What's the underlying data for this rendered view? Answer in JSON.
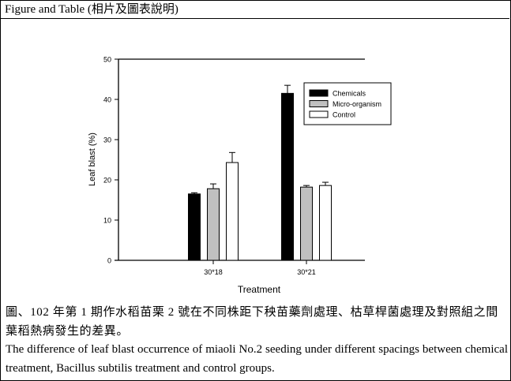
{
  "header": {
    "title": "Figure and Table (相片及圖表說明)"
  },
  "caption": {
    "zh": "圖、102 年第 1 期作水稻苗栗 2 號在不同株距下秧苗藥劑處理、枯草桿菌處理及對照組之間葉稻熱病發生的差異。",
    "en": "The difference of leaf blast occurrence of miaoli No.2 seeding under different spacings between chemical treatment, Bacillus subtilis treatment and control groups."
  },
  "chart_data": {
    "type": "bar",
    "title": "",
    "xlabel": "Treatment",
    "ylabel": "Leaf blast (%)",
    "ylim": [
      0,
      50
    ],
    "yticks": [
      0,
      10,
      20,
      30,
      40,
      50
    ],
    "categories": [
      "30*18",
      "30*21"
    ],
    "series": [
      {
        "name": "Chemicals",
        "color": "#000000",
        "values": [
          16.5,
          41.5
        ],
        "errors": [
          0.3,
          2.0
        ]
      },
      {
        "name": "Micro-organism",
        "color": "#c0c0c0",
        "values": [
          17.8,
          18.2
        ],
        "errors": [
          1.2,
          0.4
        ]
      },
      {
        "name": "Control",
        "color": "#ffffff",
        "values": [
          24.3,
          18.6
        ],
        "errors": [
          2.5,
          0.8
        ]
      }
    ],
    "legend": {
      "position": "upper-right",
      "entries": [
        "Chemicals",
        "Micro-organism",
        "Control"
      ]
    },
    "grid": false
  }
}
